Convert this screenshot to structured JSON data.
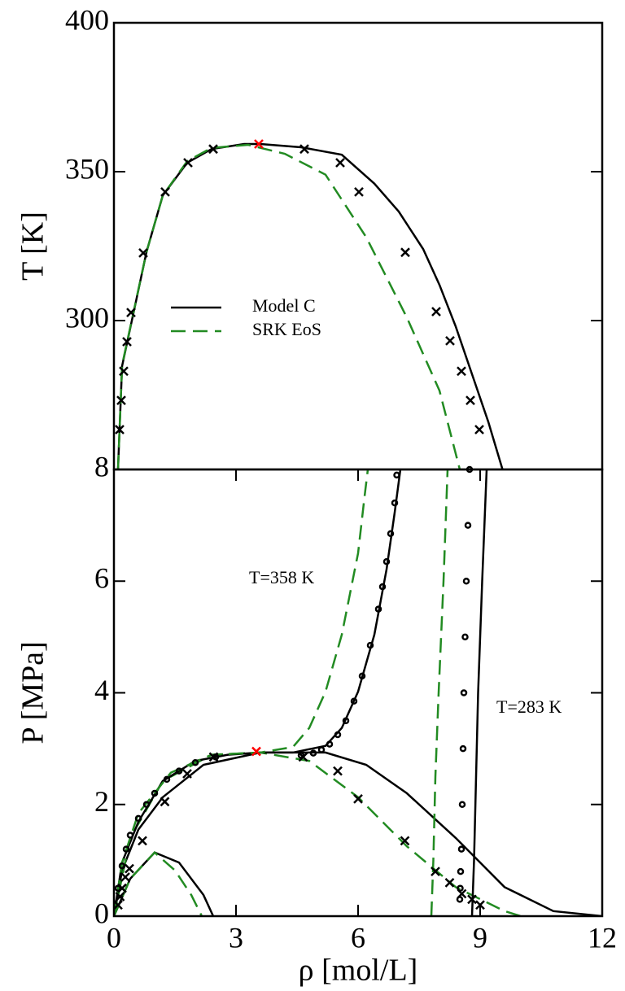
{
  "chart_data": [
    {
      "type": "line",
      "y_label": "T [K]",
      "xlim": [
        0,
        12
      ],
      "ylim": [
        250,
        400
      ],
      "yticks": [
        300,
        350,
        400
      ],
      "legend": "center-left",
      "series": [
        {
          "name": "Model C",
          "color": "#000000",
          "style": "solid",
          "x": [
            0.1,
            0.2,
            0.5,
            0.8,
            1.2,
            1.8,
            2.4,
            3.2,
            3.6,
            4.6,
            5.6,
            6.4,
            7.0,
            7.6,
            8.0,
            8.4,
            8.8,
            9.2,
            9.55
          ],
          "values": [
            250,
            284.7,
            303.8,
            323,
            342,
            353,
            357.6,
            359.3,
            359.3,
            358.2,
            355.7,
            346,
            336.6,
            324,
            312,
            298,
            282,
            266,
            250
          ]
        },
        {
          "name": "SRK EoS",
          "color": "#228b22",
          "style": "dashed",
          "x": [
            0.1,
            0.2,
            0.5,
            0.8,
            1.2,
            1.8,
            2.4,
            3.3,
            4.2,
            5.2,
            6.2,
            7.2,
            8.0,
            8.5
          ],
          "values": [
            250,
            285,
            304,
            323,
            342,
            353.5,
            358,
            359,
            356,
            349,
            328,
            301,
            276.5,
            250
          ]
        },
        {
          "color": "#000000",
          "marker": "x",
          "x": [
            0.14,
            0.18,
            0.24,
            0.32,
            0.42,
            0.72,
            1.26,
            1.82,
            2.44,
            4.68,
            5.56,
            6.02,
            7.16,
            7.92,
            8.26,
            8.54,
            8.76,
            8.98
          ],
          "values": [
            263.4,
            273.2,
            283,
            292.9,
            302.7,
            322.7,
            343.2,
            353,
            357.6,
            357.6,
            353,
            343.2,
            322.9,
            303,
            293.2,
            283,
            273.2,
            263.4
          ]
        },
        {
          "color": "#ff0000",
          "marker": "x",
          "x": [
            3.56
          ],
          "values": [
            359.3
          ]
        }
      ]
    },
    {
      "type": "line",
      "x_label": "ρ [mol/L]",
      "y_label": "P [MPa]",
      "xlim": [
        0,
        12
      ],
      "ylim": [
        0,
        8
      ],
      "xticks": [
        0,
        3,
        6,
        9,
        12
      ],
      "yticks": [
        0,
        2,
        4,
        6,
        8
      ],
      "annotations": [
        "T=358 K",
        "T=283 K"
      ],
      "series": [
        {
          "color": "#000000",
          "style": "solid",
          "x": [
            0,
            0.2,
            0.6,
            1.2,
            2.2,
            3.6,
            5.2,
            6.2,
            7.2,
            8.4,
            9.6,
            10.8,
            12
          ],
          "values": [
            0,
            0.82,
            1.55,
            2.13,
            2.71,
            2.93,
            2.93,
            2.71,
            2.2,
            1.4,
            0.52,
            0.09,
            0
          ]
        },
        {
          "color": "#228b22",
          "style": "dashed",
          "x": [
            0,
            0.4,
            1.2,
            2.4,
            3.6,
            4.8,
            6.0,
            7.2,
            8.4,
            9.6,
            10
          ],
          "values": [
            0,
            1.4,
            2.42,
            2.89,
            2.93,
            2.78,
            2.13,
            1.25,
            0.52,
            0.09,
            0
          ]
        },
        {
          "color": "#000000",
          "style": "solid",
          "x": [
            0,
            0.4,
            1.0,
            1.6,
            2.2,
            2.44
          ],
          "values": [
            0,
            0.67,
            1.14,
            0.96,
            0.38,
            0
          ]
        },
        {
          "color": "#228b22",
          "style": "dashed",
          "x": [
            0,
            0.4,
            1.0,
            1.5,
            1.9,
            2.16
          ],
          "values": [
            0,
            0.67,
            1.14,
            0.82,
            0.38,
            0
          ]
        },
        {
          "color": "#000000",
          "style": "solid",
          "x": [
            0,
            0.2,
            0.6,
            1.2,
            2.0,
            2.8,
            3.6,
            4.4,
            5.2,
            5.6,
            6.0,
            6.4,
            6.7,
            6.9,
            7.04
          ],
          "values": [
            0,
            0.96,
            1.69,
            2.42,
            2.78,
            2.89,
            2.93,
            2.93,
            3.05,
            3.37,
            4.02,
            5.04,
            6.21,
            7.23,
            8
          ]
        },
        {
          "color": "#228b22",
          "style": "dashed",
          "x": [
            0,
            0.2,
            0.6,
            1.4,
            2.4,
            3.6,
            4.4,
            4.8,
            5.2,
            5.6,
            6.0,
            6.16,
            6.24
          ],
          "values": [
            0,
            0.96,
            1.84,
            2.57,
            2.89,
            2.93,
            3.03,
            3.37,
            4.02,
            5.04,
            6.5,
            7.52,
            8
          ]
        },
        {
          "color": "#000000",
          "style": "solid",
          "x": [
            8.8,
            8.85,
            8.9,
            8.95,
            9.05,
            9.16
          ],
          "values": [
            0,
            1,
            2.5,
            4,
            6,
            8
          ]
        },
        {
          "color": "#228b22",
          "style": "dashed",
          "x": [
            7.8,
            7.85,
            7.9,
            7.98,
            8.1,
            8.2
          ],
          "values": [
            0,
            1,
            2.5,
            4,
            6,
            8
          ]
        },
        {
          "color": "#000000",
          "marker": "o",
          "x": [
            0.1,
            0.2,
            0.3,
            0.4,
            0.6,
            0.8,
            1.0,
            1.3,
            1.6,
            2.0,
            2.5,
            4.6,
            4.9,
            5.1,
            5.3,
            5.5,
            5.7,
            5.9,
            6.1,
            6.3,
            6.5,
            6.6,
            6.7,
            6.8,
            6.9,
            6.95
          ],
          "values": [
            0.5,
            0.9,
            1.2,
            1.45,
            1.75,
            2.0,
            2.2,
            2.45,
            2.6,
            2.75,
            2.85,
            2.88,
            2.92,
            2.98,
            3.08,
            3.25,
            3.5,
            3.85,
            4.3,
            4.85,
            5.5,
            5.9,
            6.35,
            6.85,
            7.4,
            7.9
          ]
        },
        {
          "color": "#000000",
          "marker": "o",
          "x": [
            8.5,
            8.51,
            8.52,
            8.54,
            8.56,
            8.58,
            8.6,
            8.63,
            8.66,
            8.7,
            8.74
          ],
          "values": [
            0.3,
            0.5,
            0.8,
            1.2,
            2,
            3,
            4,
            5,
            6,
            7,
            8
          ]
        },
        {
          "color": "#000000",
          "marker": "x",
          "x": [
            0.1,
            0.15,
            0.2,
            0.28,
            0.38,
            0.7,
            1.25,
            1.8,
            2.45,
            4.65,
            5.5,
            6.0,
            7.15,
            7.9,
            8.25,
            8.55,
            8.8,
            9.0
          ],
          "values": [
            0.2,
            0.35,
            0.5,
            0.7,
            0.85,
            1.35,
            2.05,
            2.55,
            2.85,
            2.85,
            2.6,
            2.1,
            1.35,
            0.8,
            0.6,
            0.4,
            0.3,
            0.2
          ]
        },
        {
          "color": "#ff0000",
          "marker": "x",
          "x": [
            3.5
          ],
          "values": [
            2.95
          ]
        }
      ]
    }
  ]
}
